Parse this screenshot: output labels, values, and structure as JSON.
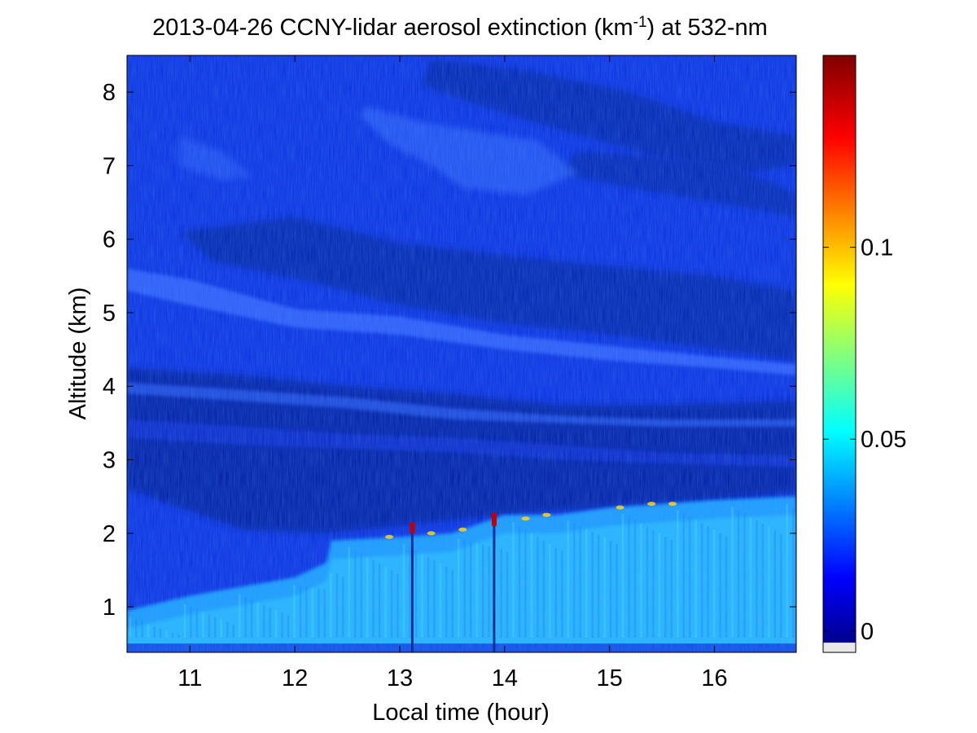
{
  "chart_data": {
    "type": "heatmap",
    "title_main": "2013-04-26 CCNY-lidar aerosol extinction (km",
    "title_sup": "-1",
    "title_end": ") at 532-nm",
    "xlabel": "Local time (hour)",
    "ylabel": "Altitude (km)",
    "xlim": [
      10.4,
      16.78
    ],
    "ylim": [
      0.38,
      8.5
    ],
    "x_ticks": [
      11,
      12,
      13,
      14,
      15,
      16
    ],
    "x_tick_labels": [
      "11",
      "12",
      "13",
      "14",
      "15",
      "16"
    ],
    "y_ticks": [
      1,
      2,
      3,
      4,
      5,
      6,
      7,
      8
    ],
    "y_tick_labels": [
      "1",
      "2",
      "3",
      "4",
      "5",
      "6",
      "7",
      "8"
    ],
    "colorbar": {
      "colormap": "jet",
      "clim": [
        -0.003,
        0.15
      ],
      "ticks": [
        0,
        0.05,
        0.1
      ],
      "tick_labels": [
        "0",
        "0.05",
        "0.1"
      ]
    },
    "boundary_layer_top_km": [
      {
        "t": 10.4,
        "z": 0.95
      },
      {
        "t": 11.0,
        "z": 1.15
      },
      {
        "t": 12.0,
        "z": 1.4
      },
      {
        "t": 12.3,
        "z": 1.6
      },
      {
        "t": 12.35,
        "z": 1.9
      },
      {
        "t": 13.0,
        "z": 1.95
      },
      {
        "t": 13.5,
        "z": 2.0
      },
      {
        "t": 14.0,
        "z": 2.25
      },
      {
        "t": 14.5,
        "z": 2.25
      },
      {
        "t": 15.0,
        "z": 2.35
      },
      {
        "t": 15.5,
        "z": 2.4
      },
      {
        "t": 16.0,
        "z": 2.45
      },
      {
        "t": 16.78,
        "z": 2.5
      }
    ],
    "high_extinction_spikes": [
      {
        "t": 13.12,
        "z_from": 2.0,
        "z_to": 2.15,
        "value": 0.15
      },
      {
        "t": 13.9,
        "z_from": 2.1,
        "z_to": 2.28,
        "value": 0.15
      }
    ]
  },
  "colors": {
    "background": "#0a2fe0",
    "figure_bg": "#ffffff"
  }
}
